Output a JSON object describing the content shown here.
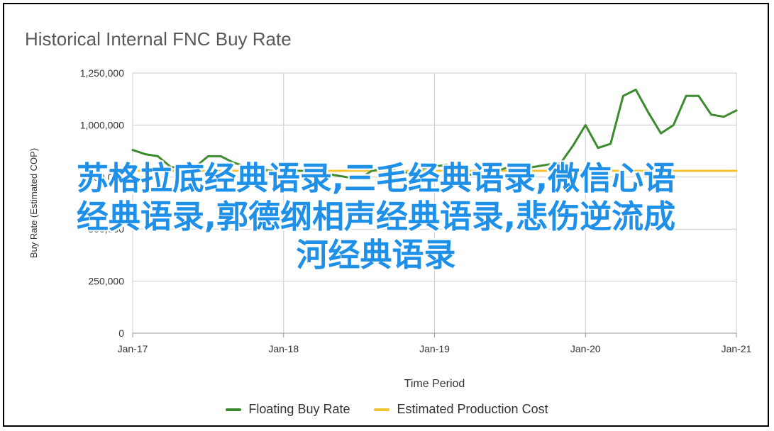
{
  "colors": {
    "floating": "#3c8a2e",
    "estimated": "#f1c232",
    "grid": "#cccccc",
    "axis_text": "#333333",
    "overlay_text": "#1e90e8"
  },
  "chart_data": {
    "type": "line",
    "title": "Historical Internal FNC Buy Rate",
    "xlabel": "Time Period",
    "ylabel": "Buy Rate (Estimated COP)",
    "x_ticks": [
      "Jan-17",
      "Jan-18",
      "Jan-19",
      "Jan-20",
      "Jan-21"
    ],
    "y_ticks": [
      "0",
      "250,000",
      "500,000",
      "750,000",
      "1,000,000",
      "1,250,000"
    ],
    "ylim": [
      0,
      1250000
    ],
    "xlim": [
      "2017-01",
      "2021-01"
    ],
    "grid": true,
    "legend_position": "bottom",
    "series": [
      {
        "name": "Floating Buy Rate",
        "x": [
          "2017-01",
          "2017-02",
          "2017-03",
          "2017-04",
          "2017-05",
          "2017-06",
          "2017-07",
          "2017-08",
          "2017-09",
          "2017-10",
          "2017-11",
          "2017-12",
          "2018-01",
          "2018-02",
          "2018-03",
          "2018-04",
          "2018-05",
          "2018-06",
          "2018-07",
          "2018-08",
          "2018-09",
          "2018-10",
          "2018-11",
          "2018-12",
          "2019-01",
          "2019-02",
          "2019-03",
          "2019-04",
          "2019-05",
          "2019-06",
          "2019-07",
          "2019-08",
          "2019-09",
          "2019-10",
          "2019-11",
          "2019-12",
          "2020-01",
          "2020-02",
          "2020-03",
          "2020-04",
          "2020-05",
          "2020-06",
          "2020-07",
          "2020-08",
          "2020-09",
          "2020-10",
          "2020-11",
          "2020-12",
          "2021-01"
        ],
        "values": [
          880000,
          860000,
          850000,
          800000,
          790000,
          800000,
          850000,
          850000,
          820000,
          800000,
          790000,
          780000,
          790000,
          780000,
          780000,
          770000,
          760000,
          750000,
          740000,
          780000,
          790000,
          780000,
          770000,
          790000,
          800000,
          810000,
          770000,
          760000,
          760000,
          780000,
          800000,
          790000,
          800000,
          810000,
          815000,
          900000,
          1000000,
          890000,
          910000,
          1140000,
          1170000,
          1060000,
          960000,
          1000000,
          1140000,
          1140000,
          1050000,
          1040000,
          1070000
        ]
      },
      {
        "name": "Estimated Production Cost",
        "x": [
          "2017-01",
          "2021-01"
        ],
        "values": [
          780000,
          780000
        ]
      }
    ]
  },
  "overlay": {
    "line1": "苏格拉底经典语录,三毛经典语录,微信心语",
    "line2": "经典语录,郭德纲相声经典语录,悲伤逆流成",
    "line3": "河经典语录"
  }
}
